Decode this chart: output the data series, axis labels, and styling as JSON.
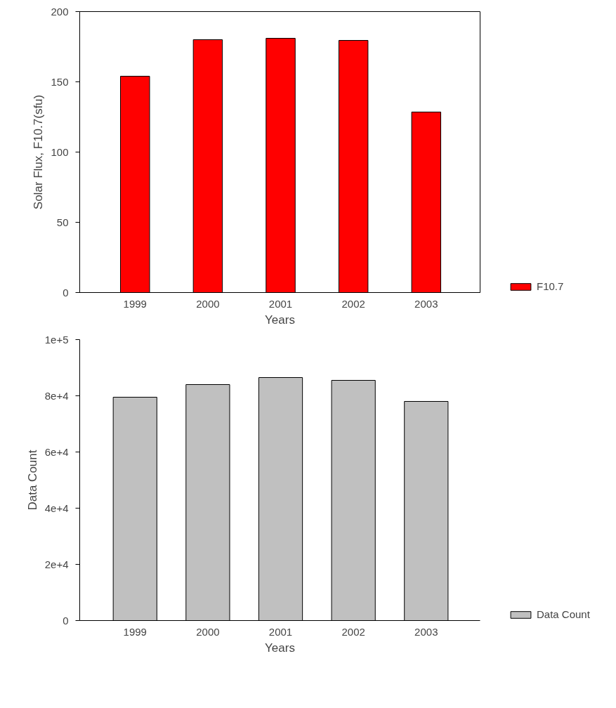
{
  "chart_data": [
    {
      "type": "bar",
      "xlabel": "Years",
      "ylabel": "Solar Flux, F10.7(sfu)",
      "categories": [
        "1999",
        "2000",
        "2001",
        "2002",
        "2003"
      ],
      "series": [
        {
          "name": "F10.7",
          "color": "#ff0000",
          "values": [
            154,
            180,
            181,
            179.5,
            128.5
          ]
        }
      ],
      "ylim": [
        0,
        200
      ],
      "yticks": [
        0,
        50,
        100,
        150,
        200
      ],
      "grid": false,
      "legend": "right"
    },
    {
      "type": "bar",
      "xlabel": "Years",
      "ylabel": "Data Count",
      "categories": [
        "1999",
        "2000",
        "2001",
        "2002",
        "2003"
      ],
      "series": [
        {
          "name": "Data Count",
          "color": "#c0c0c0",
          "values": [
            79500,
            84000,
            86500,
            85500,
            78000
          ]
        }
      ],
      "ylim": [
        0,
        100000
      ],
      "yticks": [
        {
          "value": 0,
          "label": "0"
        },
        {
          "value": 20000,
          "label": "2e+4"
        },
        {
          "value": 40000,
          "label": "4e+4"
        },
        {
          "value": 60000,
          "label": "6e+4"
        },
        {
          "value": 80000,
          "label": "8e+4"
        },
        {
          "value": 100000,
          "label": "1e+5"
        }
      ],
      "grid": false,
      "legend": "right"
    }
  ]
}
